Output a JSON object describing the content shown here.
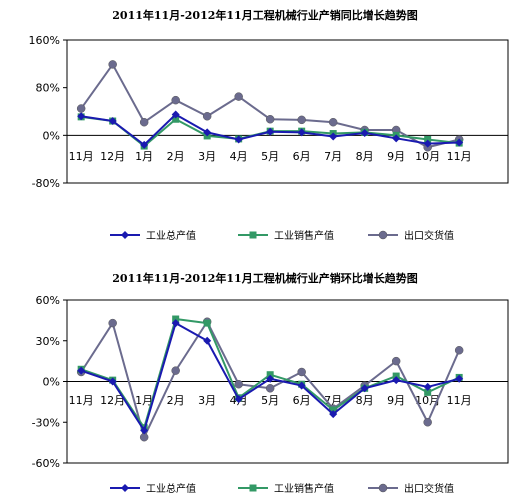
{
  "chart_data": [
    {
      "type": "line",
      "title": "2011年11月-2012年11月工程机械行业产销同比增长趋势图",
      "categories": [
        "11月",
        "12月",
        "1月",
        "2月",
        "3月",
        "4月",
        "5月",
        "6月",
        "7月",
        "8月",
        "9月",
        "10月",
        "11月"
      ],
      "y_tick_labels": [
        "160%",
        "80%",
        "0%",
        "-80%"
      ],
      "ylim": [
        -80,
        160
      ],
      "legend_position": "bottom",
      "series": [
        {
          "name": "工业总产值",
          "color": "#1a1ab0",
          "marker": "diamond",
          "values": [
            32,
            24,
            -16,
            35,
            5,
            -7,
            6,
            5,
            -2,
            4,
            -5,
            -14,
            -12
          ]
        },
        {
          "name": "工业销售产值",
          "color": "#339966",
          "marker": "square",
          "values": [
            31,
            24,
            -18,
            27,
            -1,
            -6,
            7,
            7,
            3,
            5,
            0,
            -7,
            -13
          ]
        },
        {
          "name": "出口交货值",
          "color": "#6b6b8e",
          "marker": "circle",
          "values": [
            45,
            119,
            22,
            59,
            32,
            65,
            27,
            26,
            22,
            9,
            9,
            -20,
            -7
          ]
        }
      ]
    },
    {
      "type": "line",
      "title": "2011年11月-2012年11月工程机械行业产销环比增长趋势图",
      "categories": [
        "11月",
        "12月",
        "1月",
        "2月",
        "3月",
        "4月",
        "5月",
        "6月",
        "7月",
        "8月",
        "9月",
        "10月",
        "11月"
      ],
      "y_tick_labels": [
        "60%",
        "30%",
        "0%",
        "-30%",
        "-60%"
      ],
      "ylim": [
        -60,
        60
      ],
      "legend_position": "bottom",
      "series": [
        {
          "name": "工业总产值",
          "color": "#1a1ab0",
          "marker": "diamond",
          "values": [
            8,
            0,
            -36,
            43,
            30,
            -13,
            2,
            -3,
            -24,
            -5,
            1,
            -4,
            2
          ]
        },
        {
          "name": "工业销售产值",
          "color": "#339966",
          "marker": "square",
          "values": [
            9,
            1,
            -34,
            46,
            43,
            -12,
            5,
            -2,
            -21,
            -5,
            4,
            -8,
            3
          ]
        },
        {
          "name": "出口交货值",
          "color": "#6b6b8e",
          "marker": "circle",
          "values": [
            7,
            43,
            -41,
            8,
            44,
            -2,
            -5,
            7,
            -20,
            -3,
            15,
            -30,
            23
          ]
        }
      ]
    }
  ]
}
